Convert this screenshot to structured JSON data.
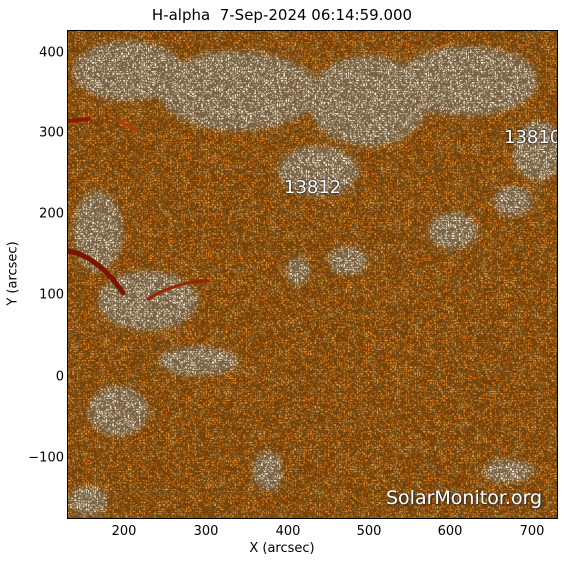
{
  "title": "H-alpha  7-Sep-2024 06:14:59.000",
  "x_axis": {
    "label": "X (arcsec)",
    "ticks": [
      "200",
      "300",
      "400",
      "500",
      "600",
      "700"
    ]
  },
  "y_axis": {
    "label": "Y (arcsec)",
    "ticks": [
      "400",
      "300",
      "200",
      "100",
      "0",
      "−100"
    ]
  },
  "regions": [
    "13810",
    "13812"
  ],
  "watermark": "SolarMonitor.org",
  "colors": {
    "background": "#ffffff",
    "image_base": "#f0902a",
    "plage": "#fff4e6",
    "filament": "#8b1a00"
  }
}
